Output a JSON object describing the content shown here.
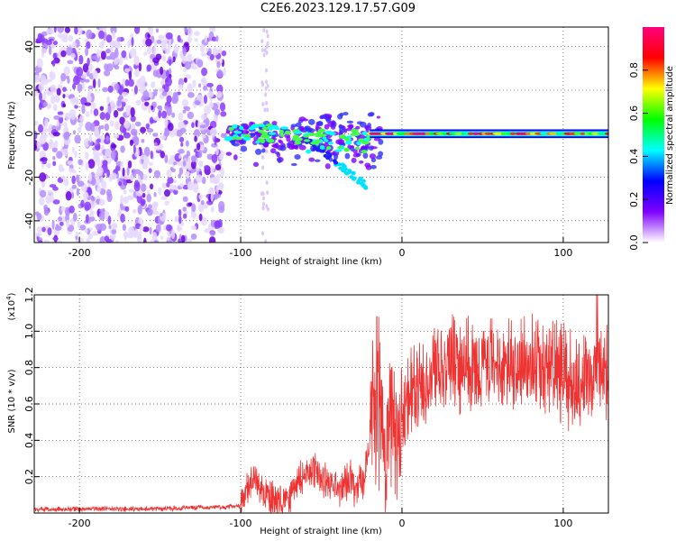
{
  "title": "C2E6.2023.129.17.57.G09",
  "chart_data": [
    {
      "type": "heatmap",
      "name": "spectrogram",
      "xlabel": "Height of straight line (km)",
      "ylabel": "Frequency (Hz)",
      "xlim": [
        -228,
        128
      ],
      "ylim": [
        -50,
        49
      ],
      "xticks": [
        "-200",
        "-100",
        "0",
        "100"
      ],
      "xtick_values": [
        -200,
        -100,
        0,
        100
      ],
      "yticks": [
        "-40",
        "-20",
        "0",
        "20",
        "40"
      ],
      "ytick_values": [
        -40,
        -20,
        0,
        20,
        40
      ],
      "noise_region_x": [
        -228,
        -110
      ],
      "trace_frequency_hz": 0,
      "colorbar": {
        "label": "Normalized spectral amplitude",
        "ticks": [
          "0.0",
          "0.2",
          "0.4",
          "0.6",
          "0.8"
        ],
        "tick_values": [
          0,
          0.2,
          0.4,
          0.6,
          0.8
        ],
        "range": [
          0,
          1
        ],
        "colormap": [
          "#ffffff",
          "#7f00ff",
          "#0000ff",
          "#00ffff",
          "#00ff00",
          "#ffff00",
          "#ff0000",
          "#ff0080"
        ]
      },
      "grid": true
    },
    {
      "type": "line",
      "name": "snr",
      "xlabel": "Height of straight line (km)",
      "ylabel": "SNR (10 * v/v)",
      "scale_label": "(x10",
      "scale_exp": "4",
      "scale_close": ")",
      "xlim": [
        -228,
        128
      ],
      "ylim": [
        0,
        1.2
      ],
      "xticks": [
        "-200",
        "-100",
        "0",
        "100"
      ],
      "xtick_values": [
        -200,
        -100,
        0,
        100
      ],
      "yticks": [
        "0.2",
        "0.4",
        "0.6",
        "0.8",
        "1.0",
        "1.2"
      ],
      "ytick_values": [
        0.2,
        0.4,
        0.6,
        0.8,
        1.0,
        1.2
      ],
      "color": "#ee3333",
      "grid": true,
      "series": [
        {
          "x": [
            -228,
            -210,
            -190,
            -170,
            -150,
            -130,
            -110,
            -100,
            -96,
            -92,
            -88,
            -84,
            -80,
            -76,
            -72,
            -68,
            -64,
            -60,
            -56,
            -52,
            -48,
            -44,
            -40,
            -36,
            -32,
            -28,
            -24,
            -21,
            -20,
            -18,
            -16,
            -14,
            -12,
            -10,
            -8,
            -5,
            -2,
            0,
            5,
            10,
            15,
            20,
            25,
            30,
            35,
            40,
            45,
            50,
            55,
            60,
            65,
            70,
            75,
            80,
            85,
            90,
            95,
            100,
            105,
            110,
            115,
            120,
            124,
            128
          ],
          "y": [
            0.02,
            0.02,
            0.025,
            0.02,
            0.025,
            0.03,
            0.03,
            0.04,
            0.12,
            0.18,
            0.14,
            0.1,
            0.06,
            0.05,
            0.08,
            0.12,
            0.18,
            0.22,
            0.25,
            0.2,
            0.18,
            0.15,
            0.14,
            0.16,
            0.18,
            0.12,
            0.2,
            0.3,
            0.45,
            0.6,
            0.55,
            0.5,
            0.4,
            0.35,
            0.5,
            0.55,
            0.45,
            0.52,
            0.62,
            0.7,
            0.75,
            0.78,
            0.8,
            0.82,
            0.83,
            0.8,
            0.78,
            0.8,
            0.82,
            0.84,
            0.83,
            0.8,
            0.82,
            0.84,
            0.8,
            0.82,
            0.78,
            0.76,
            0.72,
            0.7,
            0.78,
            0.8,
            0.76,
            0.75
          ]
        }
      ]
    }
  ]
}
